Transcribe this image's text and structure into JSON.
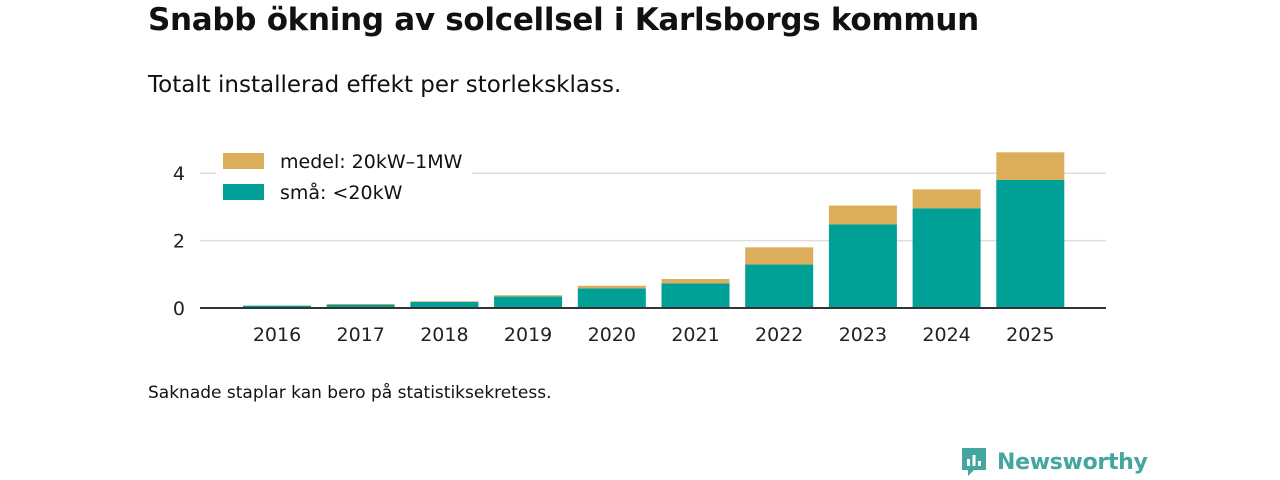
{
  "title": "Snabb ökning av solcellsel i Karlsborgs kommun",
  "subtitle": "Totalt installerad effekt per storleksklass.",
  "footnote": "Saknade staplar kan bero på statistiksekretess.",
  "brand": {
    "name": "Newsworthy",
    "icon": "newsworthy-logo-icon"
  },
  "colors": {
    "small": "#00a096",
    "medium": "#dcae5b",
    "grid": "#dddddd",
    "axis": "#333333"
  },
  "chart_data": {
    "type": "bar",
    "stacked": true,
    "title": "Snabb ökning av solcellsel i Karlsborgs kommun",
    "subtitle": "Totalt installerad effekt per storleksklass.",
    "xlabel": "",
    "ylabel": "",
    "categories": [
      "2016",
      "2017",
      "2018",
      "2019",
      "2020",
      "2021",
      "2022",
      "2023",
      "2024",
      "2025"
    ],
    "series": [
      {
        "name": "små: <20kW",
        "color": "#00a096",
        "values": [
          0.07,
          0.1,
          0.18,
          0.34,
          0.58,
          0.73,
          1.29,
          2.48,
          2.96,
          3.8
        ]
      },
      {
        "name": "medel: 20kW–1MW",
        "color": "#dcae5b",
        "values": [
          0.0,
          0.02,
          0.02,
          0.04,
          0.08,
          0.13,
          0.51,
          0.56,
          0.56,
          0.82
        ]
      }
    ],
    "ylim": [
      0,
      4.6
    ],
    "yticks": [
      0,
      2,
      4
    ],
    "grid": true,
    "legend_position": "top-left",
    "legend_order": [
      "medel: 20kW–1MW",
      "små: <20kW"
    ]
  }
}
